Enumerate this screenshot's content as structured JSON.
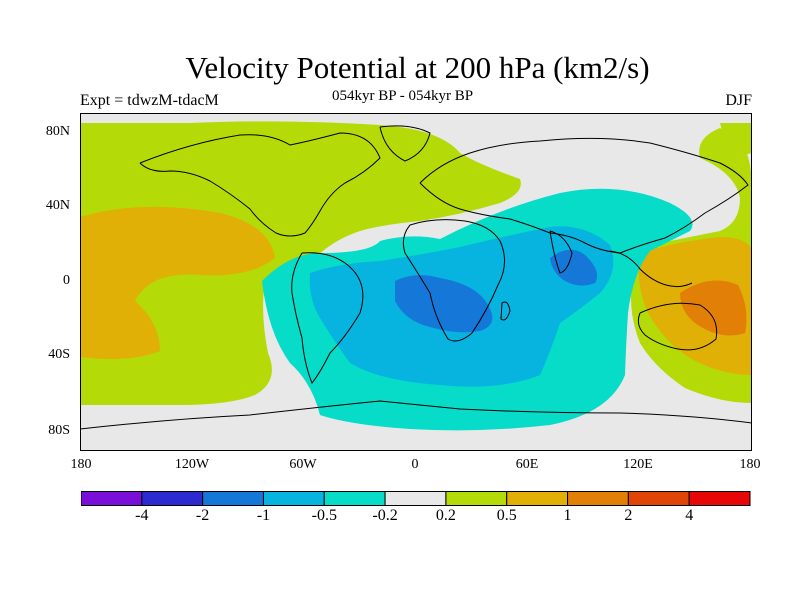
{
  "title": "Velocity Potential at 200 hPa (km2/s)",
  "experiment_label": "Expt = tdwzM-tdacM",
  "period_label": "054kyr BP - 054kyr BP",
  "season_label": "DJF",
  "lat_ticks": [
    "80N",
    "40N",
    "0",
    "40S",
    "80S"
  ],
  "lon_ticks": [
    "180",
    "120W",
    "60W",
    "0",
    "60E",
    "120E",
    "180"
  ],
  "colorbar": {
    "colors": [
      "#7a0fd8",
      "#2b2bd0",
      "#1577d8",
      "#07b4e0",
      "#06dcc8",
      "#e8e8e8",
      "#b4da07",
      "#e0b006",
      "#e27f07",
      "#e04407",
      "#e80707"
    ],
    "labels": [
      "-4",
      "-2",
      "-1",
      "-0.5",
      "-0.2",
      "0.2",
      "0.5",
      "1",
      "2",
      "4"
    ]
  }
}
